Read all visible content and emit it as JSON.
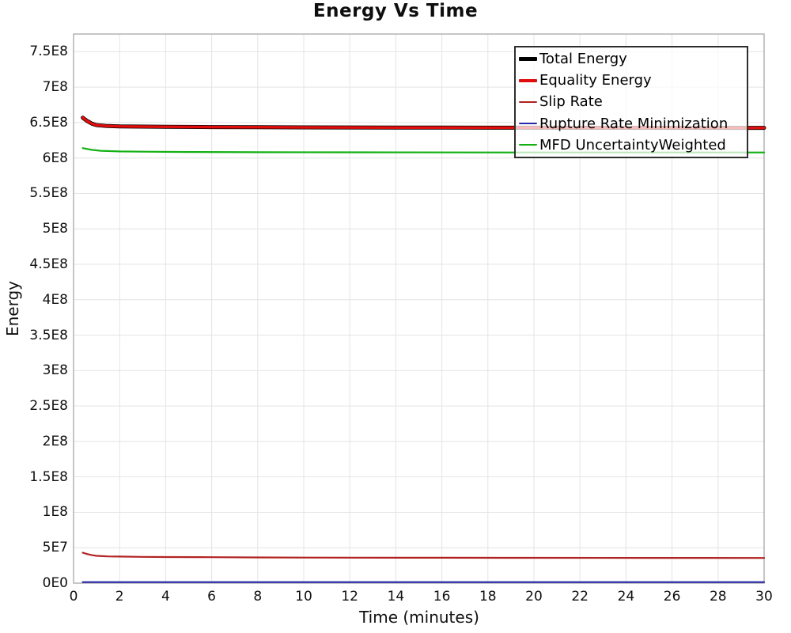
{
  "colors": {
    "background": "#ffffff",
    "grid": "#e4e4e4",
    "spine": "#a8a8a8",
    "text": "#101010",
    "legend_border": "#2e2e2e"
  },
  "legend": {
    "entries": [
      "Total Energy",
      "Equality Energy",
      "Slip Rate",
      "Rupture Rate Minimization",
      "MFD UncertaintyWeighted"
    ]
  },
  "chart_data": {
    "type": "line",
    "title": "Energy Vs Time",
    "xlabel": "Time (minutes)",
    "ylabel": "Energy",
    "xlim": [
      0,
      30
    ],
    "ylim": [
      0,
      775000000
    ],
    "grid": true,
    "legend_position": "top-right",
    "x_ticks": {
      "values": [
        0,
        2,
        4,
        6,
        8,
        10,
        12,
        14,
        16,
        18,
        20,
        22,
        24,
        26,
        28,
        30
      ],
      "labels": [
        "0",
        "2",
        "4",
        "6",
        "8",
        "10",
        "12",
        "14",
        "16",
        "18",
        "20",
        "22",
        "24",
        "26",
        "28",
        "30"
      ]
    },
    "y_ticks": {
      "values": [
        0,
        50000000,
        100000000,
        150000000,
        200000000,
        250000000,
        300000000,
        350000000,
        400000000,
        450000000,
        500000000,
        550000000,
        600000000,
        650000000,
        700000000,
        750000000
      ],
      "labels": [
        "0E0",
        "5E7",
        "1E8",
        "1.5E8",
        "2E8",
        "2.5E8",
        "3E8",
        "3.5E8",
        "4E8",
        "4.5E8",
        "5E8",
        "5.5E8",
        "6E8",
        "6.5E8",
        "7E8",
        "7.5E8"
      ]
    },
    "series": [
      {
        "name": "Total Energy",
        "color": "#000000",
        "line_width": 5,
        "points": [
          [
            0.4,
            657000000
          ],
          [
            0.6,
            652000000
          ],
          [
            0.8,
            648500000
          ],
          [
            1.0,
            646500000
          ],
          [
            1.4,
            645300000
          ],
          [
            2,
            644700000
          ],
          [
            3,
            644300000
          ],
          [
            4,
            644000000
          ],
          [
            6,
            643700000
          ],
          [
            8,
            643400000
          ],
          [
            10,
            643200000
          ],
          [
            12,
            643100000
          ],
          [
            14,
            643000000
          ],
          [
            16,
            642900000
          ],
          [
            18,
            642800000
          ],
          [
            20,
            642800000
          ],
          [
            22,
            642700000
          ],
          [
            24,
            642700000
          ],
          [
            26,
            642600000
          ],
          [
            28,
            642600000
          ],
          [
            30,
            642600000
          ]
        ]
      },
      {
        "name": "Equality Energy",
        "color": "#e00d0d",
        "line_width": 3.5,
        "points": [
          [
            0.4,
            657000000
          ],
          [
            0.6,
            652000000
          ],
          [
            0.8,
            648500000
          ],
          [
            1.0,
            646500000
          ],
          [
            1.4,
            645300000
          ],
          [
            2,
            644700000
          ],
          [
            3,
            644300000
          ],
          [
            4,
            644000000
          ],
          [
            6,
            643700000
          ],
          [
            8,
            643400000
          ],
          [
            10,
            643200000
          ],
          [
            12,
            643100000
          ],
          [
            14,
            643000000
          ],
          [
            16,
            642900000
          ],
          [
            18,
            642800000
          ],
          [
            20,
            642800000
          ],
          [
            22,
            642700000
          ],
          [
            24,
            642700000
          ],
          [
            26,
            642600000
          ],
          [
            28,
            642600000
          ],
          [
            30,
            642600000
          ]
        ]
      },
      {
        "name": "Slip Rate",
        "color": "#b22222",
        "line_width": 2.2,
        "points": [
          [
            0.4,
            43000000
          ],
          [
            0.6,
            41000000
          ],
          [
            0.8,
            39500000
          ],
          [
            1.0,
            38500000
          ],
          [
            1.5,
            37800000
          ],
          [
            2,
            37500000
          ],
          [
            3,
            37100000
          ],
          [
            4,
            36900000
          ],
          [
            6,
            36600000
          ],
          [
            8,
            36300000
          ],
          [
            10,
            36100000
          ],
          [
            12,
            36000000
          ],
          [
            16,
            35800000
          ],
          [
            20,
            35700000
          ],
          [
            25,
            35600000
          ],
          [
            30,
            35500000
          ]
        ]
      },
      {
        "name": "Rupture Rate Minimization",
        "color": "#2929aa",
        "line_width": 2.2,
        "points": [
          [
            0.4,
            1500000
          ],
          [
            30,
            1500000
          ]
        ]
      },
      {
        "name": "MFD UncertaintyWeighted",
        "color": "#12b012",
        "line_width": 2.2,
        "points": [
          [
            0.4,
            614000000
          ],
          [
            0.8,
            611500000
          ],
          [
            1.2,
            610200000
          ],
          [
            2,
            609300000
          ],
          [
            3,
            608900000
          ],
          [
            5,
            608500000
          ],
          [
            8,
            608200000
          ],
          [
            12,
            608000000
          ],
          [
            20,
            607800000
          ],
          [
            30,
            607800000
          ]
        ]
      }
    ]
  }
}
